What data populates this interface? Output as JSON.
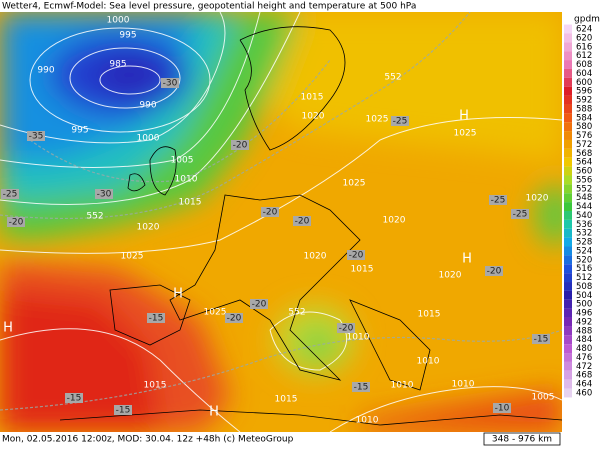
{
  "header": {
    "title": "Wetter4, Ecmwf-Model: Sea level pressure, geopotential height and temperature at 500 hPa"
  },
  "map": {
    "labels": [
      "1000",
      "995",
      "990",
      "985",
      "-30",
      "990",
      "-35",
      "995",
      "1000",
      "1005",
      "1010",
      "-25",
      "-30",
      "-20",
      "1015",
      "552",
      "-20",
      "1020",
      "552",
      "1015",
      "1020",
      "1025",
      "-25",
      "H",
      "1025",
      "-20",
      "1025",
      "-20",
      "1020",
      "-25",
      "1020",
      "-25",
      "1025",
      "1020",
      "-20",
      "1015",
      "H",
      "-20",
      "1020",
      "H",
      "H",
      "-15",
      "1025",
      "-20",
      "-20",
      "552",
      "-20",
      "1010",
      "1015",
      "-15",
      "1010",
      "1015",
      "-15",
      "-15",
      "H",
      "1015",
      "-15",
      "1010",
      "1010",
      "1005",
      "-10",
      "1010"
    ]
  },
  "legend": {
    "unit": "gpdm",
    "values": [
      624,
      620,
      616,
      612,
      608,
      604,
      600,
      596,
      592,
      588,
      584,
      580,
      576,
      572,
      568,
      564,
      560,
      556,
      552,
      548,
      544,
      540,
      536,
      532,
      528,
      524,
      520,
      516,
      512,
      508,
      504,
      500,
      496,
      492,
      488,
      484,
      480,
      476,
      472,
      468,
      464,
      460
    ]
  },
  "footer": {
    "info": "Mon, 02.05.2016 12:00z, MOD: 30.04. 12z +48h (c) MeteoGroup",
    "scale": "348 - 976 km"
  }
}
